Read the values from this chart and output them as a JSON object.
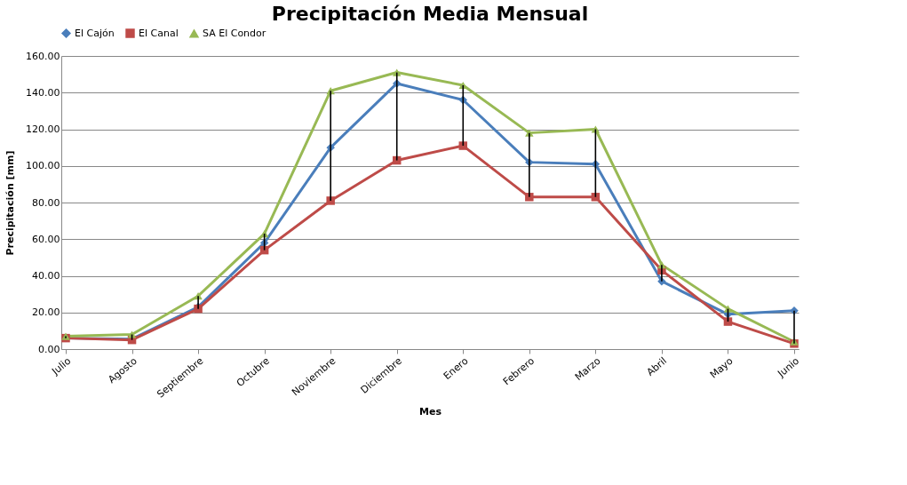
{
  "chart_data": {
    "type": "line",
    "title": "Precipitación Media Mensual",
    "xlabel": "Mes",
    "ylabel": "Precipitación  [mm]",
    "categories": [
      "Julio",
      "Agosto",
      "Septiembre",
      "Octubre",
      "Noviembre",
      "Diciembre",
      "Enero",
      "Febrero",
      "Marzo",
      "Abril",
      "Mayo",
      "Junio"
    ],
    "series": [
      {
        "name": "El Cajón",
        "color": "#4a7ebb",
        "marker": "diamond",
        "values": [
          6,
          5.5,
          23,
          58,
          110,
          145,
          136,
          102,
          101,
          37,
          19,
          21
        ]
      },
      {
        "name": "El Canal",
        "color": "#be4b48",
        "marker": "square",
        "values": [
          6,
          5,
          22,
          54,
          81,
          103,
          111,
          83,
          83,
          43,
          15,
          3
        ]
      },
      {
        "name": "SA El Condor",
        "color": "#98b954",
        "marker": "triangle",
        "values": [
          7,
          8,
          29,
          63,
          141,
          151,
          144,
          118,
          120,
          46,
          22,
          4
        ]
      },
      {
        "type": "bar",
        "color": "#000000",
        "base": [
          6,
          5,
          22,
          54,
          81,
          103,
          111,
          83,
          83,
          37,
          15,
          3
        ],
        "values": [
          1,
          3,
          7,
          9,
          60,
          48,
          33,
          35,
          37,
          9,
          7,
          18
        ]
      }
    ],
    "ylim": [
      0,
      160
    ],
    "yticks": [
      {
        "value": 0,
        "label": "0.00"
      },
      {
        "value": 20,
        "label": "20.00"
      },
      {
        "value": 40,
        "label": "40.00"
      },
      {
        "value": 60,
        "label": "60.00"
      },
      {
        "value": 80,
        "label": "80.00"
      },
      {
        "value": 100,
        "label": "100.00"
      },
      {
        "value": 120,
        "label": "120.00"
      },
      {
        "value": 140,
        "label": "140.00"
      },
      {
        "value": 160,
        "label": "160.00"
      }
    ],
    "grid": "y",
    "legend": "top",
    "line_style": "solid"
  }
}
